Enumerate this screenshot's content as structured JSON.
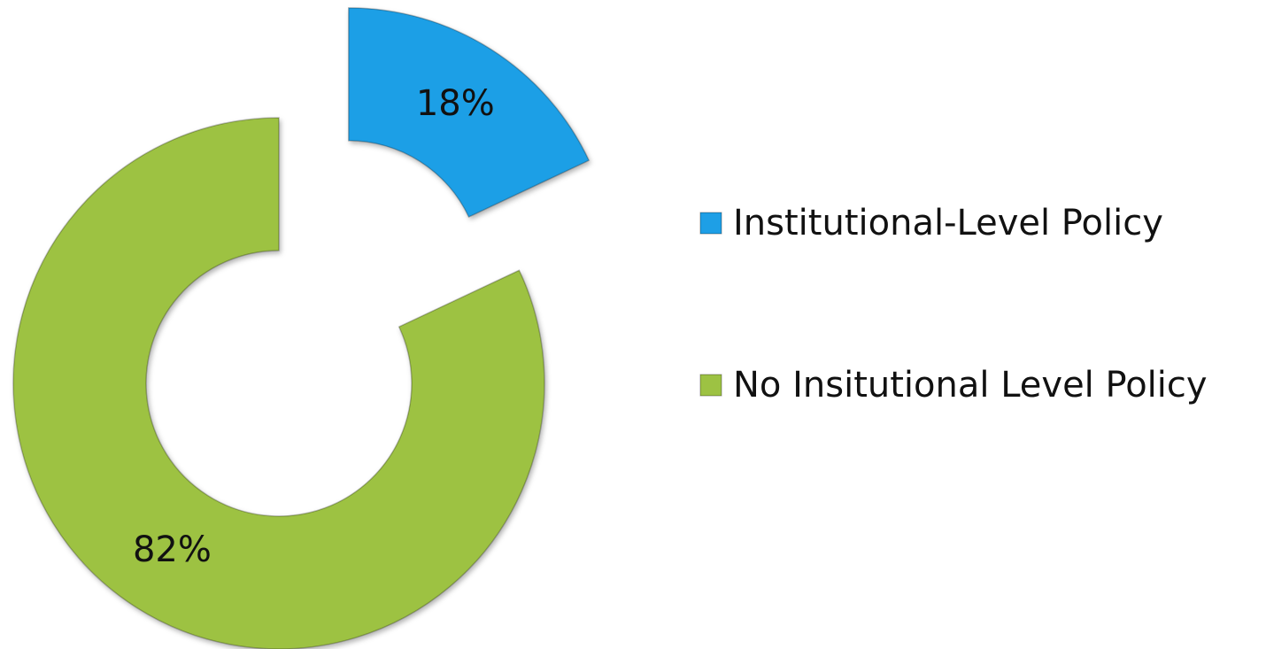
{
  "chart_data": {
    "type": "donut",
    "categories": [
      "Institutional-Level Policy",
      "No Insitutional Level Policy"
    ],
    "values": [
      18,
      82
    ],
    "value_labels": [
      "18%",
      "82%"
    ],
    "colors": [
      "#1e9fe6",
      "#9dc243"
    ],
    "legend": "right"
  }
}
